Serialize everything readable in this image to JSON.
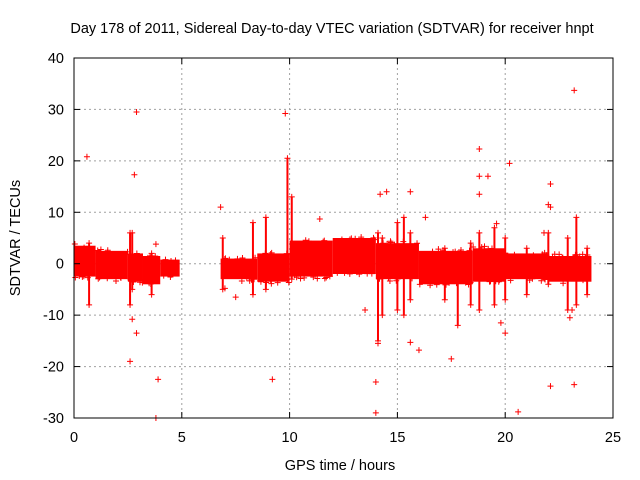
{
  "chart_data": {
    "type": "scatter",
    "title": "Day 178 of 2011, Sidereal Day-to-day VTEC variation (SDTVAR) for receiver hnpt",
    "xlabel": "GPS time / hours",
    "ylabel": "SDTVAR / TECUs",
    "xlim": [
      0,
      25
    ],
    "ylim": [
      -30,
      40
    ],
    "xticks": [
      0,
      5,
      10,
      15,
      20,
      25
    ],
    "yticks": [
      -30,
      -20,
      -10,
      0,
      10,
      20,
      30,
      40
    ],
    "grid": true,
    "marker": "+",
    "color": "#ff0000",
    "series": [
      {
        "name": "SDTVAR",
        "bands": [
          {
            "x": [
              0.0,
              1.0
            ],
            "lo": -2.5,
            "hi": 3.5
          },
          {
            "x": [
              1.0,
              2.5
            ],
            "lo": -3.0,
            "hi": 2.5
          },
          {
            "x": [
              2.5,
              3.2
            ],
            "lo": -3.5,
            "hi": 2.0
          },
          {
            "x": [
              3.2,
              4.0
            ],
            "lo": -4.0,
            "hi": 1.5
          },
          {
            "x": [
              4.0,
              4.9
            ],
            "lo": -2.5,
            "hi": 0.8
          },
          {
            "x": [
              6.8,
              8.5
            ],
            "lo": -3.0,
            "hi": 1.0
          },
          {
            "x": [
              8.5,
              10.0
            ],
            "lo": -3.5,
            "hi": 2.0
          },
          {
            "x": [
              10.0,
              12.0
            ],
            "lo": -2.5,
            "hi": 4.5
          },
          {
            "x": [
              12.0,
              14.0
            ],
            "lo": -2.0,
            "hi": 5.0
          },
          {
            "x": [
              14.0,
              16.0
            ],
            "lo": -3.0,
            "hi": 4.0
          },
          {
            "x": [
              16.0,
              18.5
            ],
            "lo": -4.0,
            "hi": 2.5
          },
          {
            "x": [
              18.5,
              20.0
            ],
            "lo": -3.5,
            "hi": 3.0
          },
          {
            "x": [
              20.0,
              22.0
            ],
            "lo": -3.0,
            "hi": 2.0
          },
          {
            "x": [
              22.0,
              24.0
            ],
            "lo": -3.5,
            "hi": 1.5
          }
        ],
        "spikes": [
          {
            "x": 0.7,
            "lo": -8,
            "hi": 4
          },
          {
            "x": 2.6,
            "lo": -8,
            "hi": 6
          },
          {
            "x": 2.7,
            "lo": -5,
            "hi": 6
          },
          {
            "x": 3.6,
            "lo": -6,
            "hi": 2
          },
          {
            "x": 6.9,
            "lo": -5,
            "hi": 5
          },
          {
            "x": 8.3,
            "lo": -6,
            "hi": 8
          },
          {
            "x": 8.9,
            "lo": -5,
            "hi": 9
          },
          {
            "x": 9.9,
            "lo": -3,
            "hi": 20.5
          },
          {
            "x": 10.1,
            "lo": -3,
            "hi": 13
          },
          {
            "x": 14.1,
            "lo": -15,
            "hi": 6
          },
          {
            "x": 14.3,
            "lo": -10,
            "hi": 5
          },
          {
            "x": 15.0,
            "lo": -9,
            "hi": 8
          },
          {
            "x": 15.3,
            "lo": -10,
            "hi": 9
          },
          {
            "x": 15.6,
            "lo": -7,
            "hi": 6
          },
          {
            "x": 17.2,
            "lo": -7,
            "hi": 3
          },
          {
            "x": 17.8,
            "lo": -12,
            "hi": 2
          },
          {
            "x": 18.4,
            "lo": -8,
            "hi": 4
          },
          {
            "x": 18.8,
            "lo": -9,
            "hi": 6
          },
          {
            "x": 19.5,
            "lo": -8,
            "hi": 7
          },
          {
            "x": 20.0,
            "lo": -7,
            "hi": 5
          },
          {
            "x": 21.0,
            "lo": -6,
            "hi": 3
          },
          {
            "x": 22.0,
            "lo": -4,
            "hi": 6
          },
          {
            "x": 22.9,
            "lo": -9,
            "hi": 5
          },
          {
            "x": 23.3,
            "lo": -8,
            "hi": 9
          },
          {
            "x": 23.8,
            "lo": -6,
            "hi": 3
          }
        ],
        "outliers": [
          {
            "x": 0.6,
            "y": 20.8
          },
          {
            "x": 2.9,
            "y": 29.5
          },
          {
            "x": 2.8,
            "y": 17.3
          },
          {
            "x": 2.6,
            "y": -19.0
          },
          {
            "x": 2.7,
            "y": -10.8
          },
          {
            "x": 2.9,
            "y": -13.5
          },
          {
            "x": 3.9,
            "y": -22.5
          },
          {
            "x": 3.8,
            "y": -30.0
          },
          {
            "x": 3.8,
            "y": 3.8
          },
          {
            "x": 6.8,
            "y": 11.0
          },
          {
            "x": 7.0,
            "y": -4.8
          },
          {
            "x": 7.5,
            "y": -6.5
          },
          {
            "x": 9.2,
            "y": -22.5
          },
          {
            "x": 9.8,
            "y": 29.2
          },
          {
            "x": 11.4,
            "y": 8.7
          },
          {
            "x": 13.5,
            "y": -9.0
          },
          {
            "x": 14.0,
            "y": -23.0
          },
          {
            "x": 14.0,
            "y": -29.0
          },
          {
            "x": 14.1,
            "y": -15.5
          },
          {
            "x": 14.2,
            "y": 13.5
          },
          {
            "x": 14.5,
            "y": 14.0
          },
          {
            "x": 15.6,
            "y": 14.0
          },
          {
            "x": 15.6,
            "y": -15.3
          },
          {
            "x": 16.0,
            "y": -16.8
          },
          {
            "x": 16.3,
            "y": 9.0
          },
          {
            "x": 17.5,
            "y": -18.5
          },
          {
            "x": 18.8,
            "y": 22.3
          },
          {
            "x": 18.8,
            "y": 17.0
          },
          {
            "x": 18.8,
            "y": 13.5
          },
          {
            "x": 19.2,
            "y": 17.0
          },
          {
            "x": 19.6,
            "y": 7.8
          },
          {
            "x": 19.8,
            "y": -11.5
          },
          {
            "x": 20.0,
            "y": -13.5
          },
          {
            "x": 20.2,
            "y": 19.5
          },
          {
            "x": 20.6,
            "y": -28.8
          },
          {
            "x": 21.8,
            "y": 6.0
          },
          {
            "x": 22.0,
            "y": 11.5
          },
          {
            "x": 22.1,
            "y": 11.0
          },
          {
            "x": 22.1,
            "y": 15.5
          },
          {
            "x": 22.1,
            "y": -23.8
          },
          {
            "x": 23.0,
            "y": -10.5
          },
          {
            "x": 23.2,
            "y": 33.7
          },
          {
            "x": 23.2,
            "y": -23.5
          },
          {
            "x": 23.1,
            "y": -9.0
          }
        ]
      }
    ]
  }
}
